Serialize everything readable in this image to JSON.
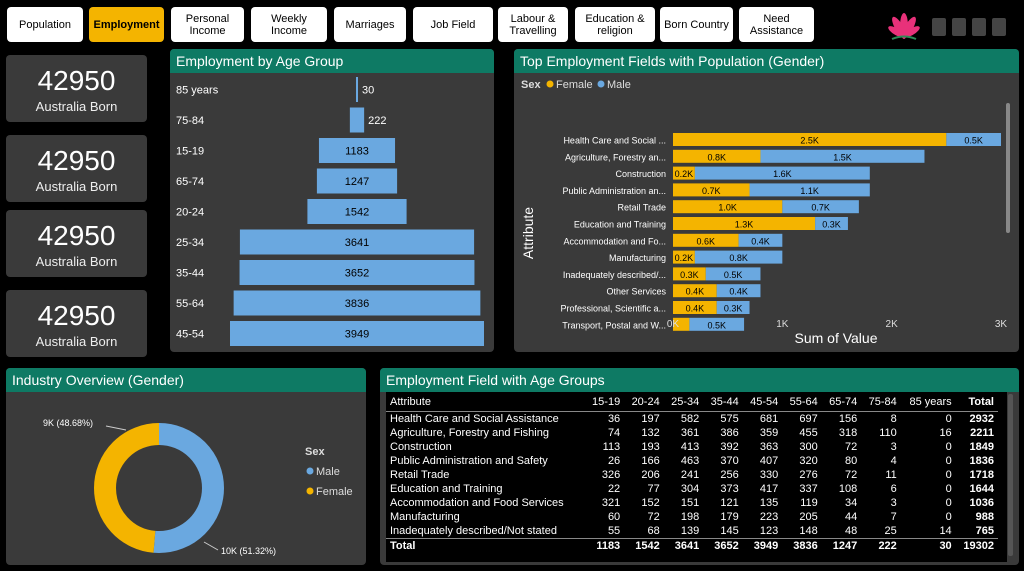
{
  "nav": {
    "tabs": [
      {
        "label": "Population",
        "active": false
      },
      {
        "label": "Employment",
        "active": true
      },
      {
        "label": "Personal Income",
        "active": false
      },
      {
        "label": "Weekly Income",
        "active": false
      },
      {
        "label": "Marriages",
        "active": false
      },
      {
        "label": "Job Field",
        "active": false
      },
      {
        "label": "Labour & Travelling",
        "active": false
      },
      {
        "label": "Education & religion",
        "active": false
      },
      {
        "label": "Born Country",
        "active": false
      },
      {
        "label": "Need Assistance",
        "active": false
      }
    ]
  },
  "kpis": [
    {
      "value": "42950",
      "label": "Australia Born"
    },
    {
      "value": "42950",
      "label": "Australia Born"
    },
    {
      "value": "42950",
      "label": "Australia Born"
    },
    {
      "value": "42950",
      "label": "Australia Born"
    }
  ],
  "colors": {
    "female": "#f4b400",
    "male": "#6aa8e0",
    "panel": "#3a3a3a",
    "title_bar": "#0e7a64"
  },
  "chart_data": [
    {
      "type": "bar",
      "title": "Employment by Age Group",
      "categories": [
        "85 years",
        "75-84",
        "15-19",
        "65-74",
        "20-24",
        "25-34",
        "35-44",
        "55-64",
        "45-54"
      ],
      "values": [
        30,
        222,
        1183,
        1247,
        1542,
        3641,
        3652,
        3836,
        3949
      ]
    },
    {
      "type": "bar",
      "title": "Top Employment Fields with Population (Gender)",
      "legend_title": "Sex",
      "xlabel": "Sum of Value",
      "ylabel": "Attribute",
      "xticks": [
        "0K",
        "1K",
        "2K",
        "3K"
      ],
      "xlim": [
        0,
        3000
      ],
      "categories": [
        "Health Care and Social ...",
        "Agriculture, Forestry an...",
        "Construction",
        "Public Administration an...",
        "Retail Trade",
        "Education and Training",
        "Accommodation and Fo...",
        "Manufacturing",
        "Inadequately described/...",
        "Other Services",
        "Professional, Scientific a...",
        "Transport, Postal and W..."
      ],
      "series": [
        {
          "name": "Female",
          "values": [
            2500,
            800,
            200,
            700,
            1000,
            1300,
            600,
            200,
            300,
            400,
            400,
            150
          ],
          "labels": [
            "2.5K",
            "0.8K",
            "0.2K",
            "0.7K",
            "1.0K",
            "1.3K",
            "0.6K",
            "0.2K",
            "0.3K",
            "0.4K",
            "0.4K",
            ""
          ]
        },
        {
          "name": "Male",
          "values": [
            500,
            1500,
            1600,
            1100,
            700,
            300,
            400,
            800,
            500,
            400,
            300,
            500
          ],
          "labels": [
            "0.5K",
            "1.5K",
            "1.6K",
            "1.1K",
            "0.7K",
            "0.3K",
            "0.4K",
            "0.8K",
            "0.5K",
            "0.4K",
            "0.3K",
            "0.5K"
          ]
        }
      ]
    },
    {
      "type": "pie",
      "title": "Industry Overview (Gender)",
      "legend_title": "Sex",
      "labels": [
        "Male",
        "Female"
      ],
      "values": [
        51.32,
        48.68
      ],
      "data_labels": [
        "10K (51.32%)",
        "9K (48.68%)"
      ]
    },
    {
      "type": "table",
      "title": "Employment Field with Age Groups",
      "columns": [
        "Attribute",
        "15-19",
        "20-24",
        "25-34",
        "35-44",
        "45-54",
        "55-64",
        "65-74",
        "75-84",
        "85 years",
        "Total"
      ],
      "rows": [
        [
          "Health Care and Social Assistance",
          "36",
          "197",
          "582",
          "575",
          "681",
          "697",
          "156",
          "8",
          "0",
          "2932"
        ],
        [
          "Agriculture, Forestry and Fishing",
          "74",
          "132",
          "361",
          "386",
          "359",
          "455",
          "318",
          "110",
          "16",
          "2211"
        ],
        [
          "Construction",
          "113",
          "193",
          "413",
          "392",
          "363",
          "300",
          "72",
          "3",
          "0",
          "1849"
        ],
        [
          "Public Administration and Safety",
          "26",
          "166",
          "463",
          "370",
          "407",
          "320",
          "80",
          "4",
          "0",
          "1836"
        ],
        [
          "Retail Trade",
          "326",
          "206",
          "241",
          "256",
          "330",
          "276",
          "72",
          "11",
          "0",
          "1718"
        ],
        [
          "Education and Training",
          "22",
          "77",
          "304",
          "373",
          "417",
          "337",
          "108",
          "6",
          "0",
          "1644"
        ],
        [
          "Accommodation and Food Services",
          "321",
          "152",
          "151",
          "121",
          "135",
          "119",
          "34",
          "3",
          "0",
          "1036"
        ],
        [
          "Manufacturing",
          "60",
          "72",
          "198",
          "179",
          "223",
          "205",
          "44",
          "7",
          "0",
          "988"
        ],
        [
          "Inadequately described/Not stated",
          "55",
          "68",
          "139",
          "145",
          "123",
          "148",
          "48",
          "25",
          "14",
          "765"
        ]
      ],
      "total": [
        "Total",
        "1183",
        "1542",
        "3641",
        "3652",
        "3949",
        "3836",
        "1247",
        "222",
        "30",
        "19302"
      ]
    }
  ]
}
